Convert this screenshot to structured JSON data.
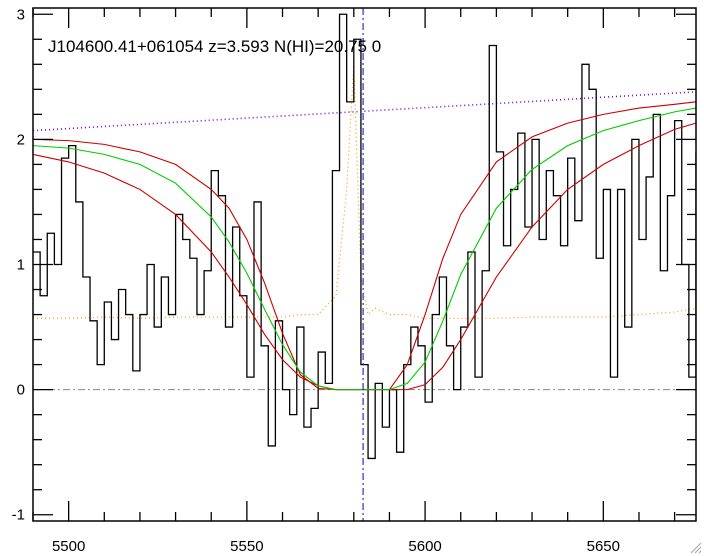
{
  "chart_data": {
    "type": "line",
    "title": "J104600.41+061054 z=3.593 N(HI)=20.75 0",
    "xlabel": "",
    "ylabel": "",
    "xlim": [
      5490,
      5676
    ],
    "ylim": [
      -1.05,
      3.05
    ],
    "x_ticks": [
      "5500",
      "5550",
      "5600",
      "5650"
    ],
    "y_ticks": [
      "-1",
      "0",
      "1",
      "2",
      "3"
    ],
    "x_tick_values": [
      5500,
      5550,
      5600,
      5650
    ],
    "y_tick_values": [
      -1,
      0,
      1,
      2,
      3
    ],
    "center_wavelength": 5582.6,
    "colors": {
      "flux": "#000000",
      "model": "#00cc00",
      "model_bounds": "#cc0000",
      "continuum": "#8800cc",
      "error": "#ff9900",
      "zero": "#888888",
      "center": "#0000cc"
    },
    "series": [
      {
        "kind": "flux",
        "style": "steps",
        "x": [
          5490,
          5492,
          5494,
          5496,
          5498,
          5500,
          5502,
          5504,
          5506,
          5508,
          5510,
          5512,
          5514,
          5516,
          5518,
          5520,
          5522,
          5524,
          5526,
          5528,
          5530,
          5532,
          5534,
          5536,
          5538,
          5540,
          5542,
          5544,
          5546,
          5548,
          5550,
          5552,
          5554,
          5556,
          5558,
          5560,
          5562,
          5564,
          5566,
          5568,
          5570,
          5572,
          5574,
          5576,
          5578,
          5580,
          5582,
          5584,
          5586,
          5588,
          5590,
          5592,
          5594,
          5596,
          5598,
          5600,
          5602,
          5604,
          5606,
          5608,
          5610,
          5612,
          5614,
          5616,
          5618,
          5620,
          5622,
          5624,
          5626,
          5628,
          5630,
          5632,
          5634,
          5636,
          5638,
          5640,
          5642,
          5644,
          5646,
          5648,
          5650,
          5652,
          5654,
          5656,
          5658,
          5660,
          5662,
          5664,
          5666,
          5668,
          5670,
          5672,
          5674,
          5676
        ],
        "y": [
          1.1,
          0.75,
          1.25,
          1.0,
          1.85,
          1.95,
          1.5,
          0.9,
          0.55,
          0.2,
          0.7,
          0.4,
          0.8,
          0.6,
          0.15,
          0.6,
          1.0,
          0.5,
          0.9,
          0.6,
          1.4,
          1.2,
          1.05,
          0.6,
          0.95,
          1.75,
          1.55,
          0.5,
          1.3,
          0.75,
          0.1,
          1.5,
          0.35,
          -0.45,
          0.55,
          0.0,
          -0.2,
          0.5,
          -0.3,
          -0.15,
          0.3,
          0.05,
          1.75,
          3.0,
          2.3,
          2.8,
          0.2,
          -0.55,
          0.05,
          -0.3,
          0.0,
          -0.5,
          0.2,
          0.5,
          0.35,
          -0.1,
          0.6,
          0.9,
          0.35,
          0.0,
          0.5,
          1.1,
          0.1,
          0.95,
          2.75,
          1.9,
          1.15,
          1.6,
          2.05,
          1.3,
          2.0,
          1.2,
          1.75,
          1.55,
          1.15,
          1.85,
          1.35,
          2.6,
          2.4,
          1.05,
          1.6,
          0.1,
          1.6,
          0.5,
          2.0,
          1.2,
          1.7,
          2.2,
          0.95,
          1.55,
          2.15,
          1.0,
          0.1,
          1.9
        ]
      },
      {
        "kind": "model",
        "style": "line",
        "x": [
          5490,
          5500,
          5510,
          5520,
          5530,
          5540,
          5545,
          5550,
          5555,
          5560,
          5565,
          5570,
          5575,
          5580,
          5585,
          5590,
          5595,
          5600,
          5605,
          5610,
          5620,
          5630,
          5640,
          5650,
          5660,
          5670,
          5676
        ],
        "y": [
          1.95,
          1.93,
          1.88,
          1.8,
          1.65,
          1.38,
          1.18,
          0.93,
          0.64,
          0.36,
          0.14,
          0.03,
          0.0,
          0.0,
          0.0,
          0.0,
          0.05,
          0.22,
          0.55,
          0.92,
          1.45,
          1.76,
          1.95,
          2.07,
          2.15,
          2.22,
          2.25
        ]
      },
      {
        "kind": "model_upper",
        "style": "line",
        "x": [
          5490,
          5500,
          5510,
          5520,
          5530,
          5540,
          5545,
          5550,
          5555,
          5560,
          5565,
          5570,
          5575,
          5580,
          5585,
          5590,
          5595,
          5600,
          5605,
          5610,
          5620,
          5630,
          5640,
          5650,
          5660,
          5670,
          5676
        ],
        "y": [
          2.0,
          1.99,
          1.96,
          1.9,
          1.8,
          1.6,
          1.45,
          1.2,
          0.85,
          0.45,
          0.12,
          0.01,
          0.0,
          0.0,
          0.0,
          0.0,
          0.2,
          0.6,
          1.05,
          1.4,
          1.82,
          2.02,
          2.13,
          2.2,
          2.25,
          2.28,
          2.3
        ]
      },
      {
        "kind": "model_lower",
        "style": "line",
        "x": [
          5490,
          5500,
          5510,
          5520,
          5530,
          5540,
          5545,
          5550,
          5555,
          5560,
          5565,
          5570,
          5575,
          5580,
          5585,
          5590,
          5595,
          5600,
          5605,
          5610,
          5620,
          5630,
          5640,
          5650,
          5660,
          5670,
          5676
        ],
        "y": [
          1.88,
          1.82,
          1.73,
          1.6,
          1.4,
          1.1,
          0.9,
          0.68,
          0.44,
          0.24,
          0.1,
          0.03,
          0.0,
          0.0,
          0.0,
          0.0,
          0.0,
          0.04,
          0.18,
          0.4,
          0.9,
          1.3,
          1.6,
          1.8,
          1.95,
          2.08,
          2.13
        ]
      },
      {
        "kind": "continuum",
        "style": "dotted",
        "x": [
          5490,
          5676
        ],
        "y": [
          2.07,
          2.38
        ]
      },
      {
        "kind": "error",
        "style": "dotted",
        "x": [
          5490,
          5500,
          5510,
          5520,
          5530,
          5540,
          5550,
          5560,
          5565,
          5570,
          5575,
          5578,
          5580,
          5582,
          5584,
          5586,
          5590,
          5595,
          5600,
          5610,
          5620,
          5630,
          5640,
          5650,
          5660,
          5670,
          5676
        ],
        "y": [
          0.57,
          0.57,
          0.58,
          0.57,
          0.58,
          0.58,
          0.58,
          0.58,
          0.6,
          0.6,
          0.75,
          1.6,
          2.6,
          0.9,
          0.6,
          0.65,
          0.6,
          0.6,
          0.57,
          0.57,
          0.57,
          0.58,
          0.58,
          0.58,
          0.6,
          0.62,
          0.65
        ]
      }
    ]
  },
  "window": {
    "resize_grip": "resize-grip-icon"
  }
}
